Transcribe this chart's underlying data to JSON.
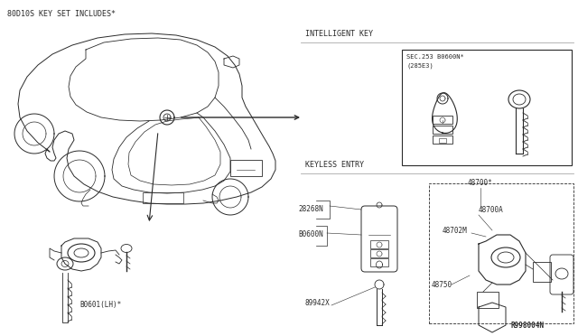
{
  "bg_color": "#ffffff",
  "label_top_left": "80D10S KEY SET INCLUDES*",
  "label_intelligent_key": "INTELLIGENT KEY",
  "label_keyless_entry": "KEYLESS ENTRY",
  "label_ik_ref1": "SEC.253 B0600N*",
  "label_ik_ref2": "(285E3)",
  "label_b0601": "B0601(LH)*",
  "label_b0600n_kl": "B0600N",
  "label_28268n": "28268N",
  "label_89942x": "89942X",
  "label_48700star": "48700*",
  "label_48700a": "48700A",
  "label_48702m": "48702M",
  "label_48750": "48750",
  "label_r998004n": "R998004N",
  "line_color": "#2a2a2a",
  "text_color": "#2a2a2a",
  "separator_color": "#999999",
  "fig_w": 6.4,
  "fig_h": 3.72,
  "dpi": 100
}
